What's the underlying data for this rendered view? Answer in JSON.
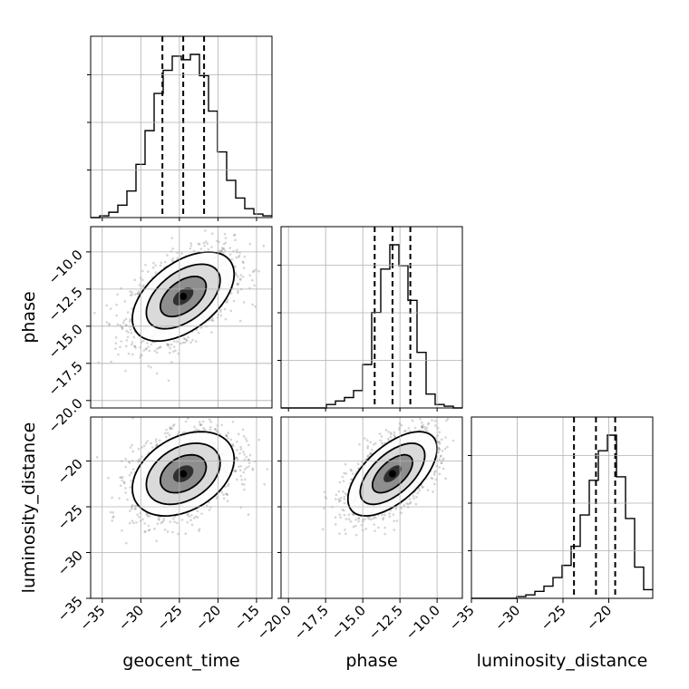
{
  "chart_data": {
    "type": "corner",
    "parameters": [
      "geocent_time",
      "phase",
      "luminosity_distance"
    ],
    "axes": {
      "geocent_time": {
        "range": [
          -36.5,
          -13
        ],
        "ticks": [
          -35,
          -30,
          -25,
          -20,
          -15
        ]
      },
      "phase": {
        "range": [
          -20.5,
          -8.3
        ],
        "ticks": [
          -20.0,
          -17.5,
          -15.0,
          -12.5,
          -10.0
        ]
      },
      "luminosity_distance": {
        "range": [
          -35,
          -15.2
        ],
        "ticks": [
          -35,
          -30,
          -25,
          -20
        ]
      }
    },
    "tick_labels": {
      "geocent_time": [
        "−35",
        "−30",
        "−25",
        "−20",
        "−15"
      ],
      "phase": [
        "−20.0",
        "−17.5",
        "−15.0",
        "−12.5",
        "−10.0"
      ],
      "luminosity_distance": [
        "−35",
        "−30",
        "−25",
        "−20"
      ]
    },
    "histograms": {
      "geocent_time": {
        "bin_start": -36.5,
        "bin_width": 1.175,
        "counts": [
          0,
          0.01,
          0.03,
          0.07,
          0.15,
          0.3,
          0.49,
          0.7,
          0.83,
          0.91,
          0.89,
          0.92,
          0.8,
          0.6,
          0.37,
          0.21,
          0.11,
          0.05,
          0.02,
          0.01
        ]
      },
      "phase": {
        "bin_start": -20.5,
        "bin_width": 0.61,
        "counts": [
          0,
          0,
          0,
          0,
          0,
          0.02,
          0.04,
          0.06,
          0.1,
          0.25,
          0.55,
          0.8,
          0.94,
          0.82,
          0.62,
          0.32,
          0.08,
          0.02,
          0.01,
          0
        ]
      },
      "luminosity_distance": {
        "bin_start": -35,
        "bin_width": 0.99,
        "counts": [
          0,
          0,
          0,
          0,
          0,
          0.01,
          0.02,
          0.04,
          0.07,
          0.12,
          0.19,
          0.3,
          0.48,
          0.68,
          0.85,
          0.94,
          0.7,
          0.46,
          0.18,
          0.05
        ]
      }
    },
    "quantiles": {
      "geocent_time": [
        -27.2,
        -24.5,
        -21.8
      ],
      "phase": [
        -14.2,
        -13.0,
        -11.8
      ],
      "luminosity_distance": [
        -23.8,
        -21.4,
        -19.3
      ]
    },
    "pairs": [
      {
        "x": "geocent_time",
        "y": "phase",
        "center": [
          -24.5,
          -13.0
        ],
        "sd": [
          3.3,
          1.5
        ],
        "rho": 0.5
      },
      {
        "x": "geocent_time",
        "y": "luminosity_distance",
        "center": [
          -24.5,
          -21.4
        ],
        "sd": [
          3.3,
          2.3
        ],
        "rho": 0.35
      },
      {
        "x": "phase",
        "y": "luminosity_distance",
        "center": [
          -13.0,
          -21.4
        ],
        "sd": [
          1.5,
          2.3
        ],
        "rho": 0.6
      }
    ],
    "grid": true
  }
}
